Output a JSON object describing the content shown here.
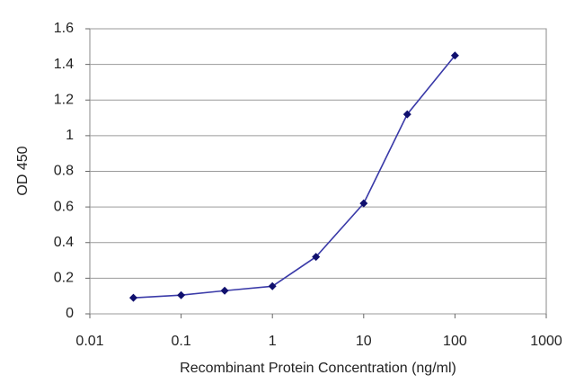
{
  "chart_data": {
    "type": "line",
    "x_label": "Recombinant Protein Concentration (ng/ml)",
    "y_label": "OD 450",
    "x": [
      0.03,
      0.1,
      0.3,
      1,
      3,
      10,
      30,
      100
    ],
    "series": [
      {
        "color": "#3a3aa8",
        "values": [
          0.09,
          0.105,
          0.13,
          0.155,
          0.32,
          0.62,
          1.12,
          1.45
        ]
      }
    ],
    "marker_color": "#10106e",
    "xlim": [
      0.01,
      1000
    ],
    "xticks": [
      0.01,
      0.1,
      1,
      10,
      100,
      1000
    ],
    "xlog": true,
    "ylim": [
      0,
      1.6
    ],
    "yticks": [
      0,
      0.2,
      0.4,
      0.6,
      0.8,
      1,
      1.2,
      1.4,
      1.6
    ],
    "grid": true
  }
}
